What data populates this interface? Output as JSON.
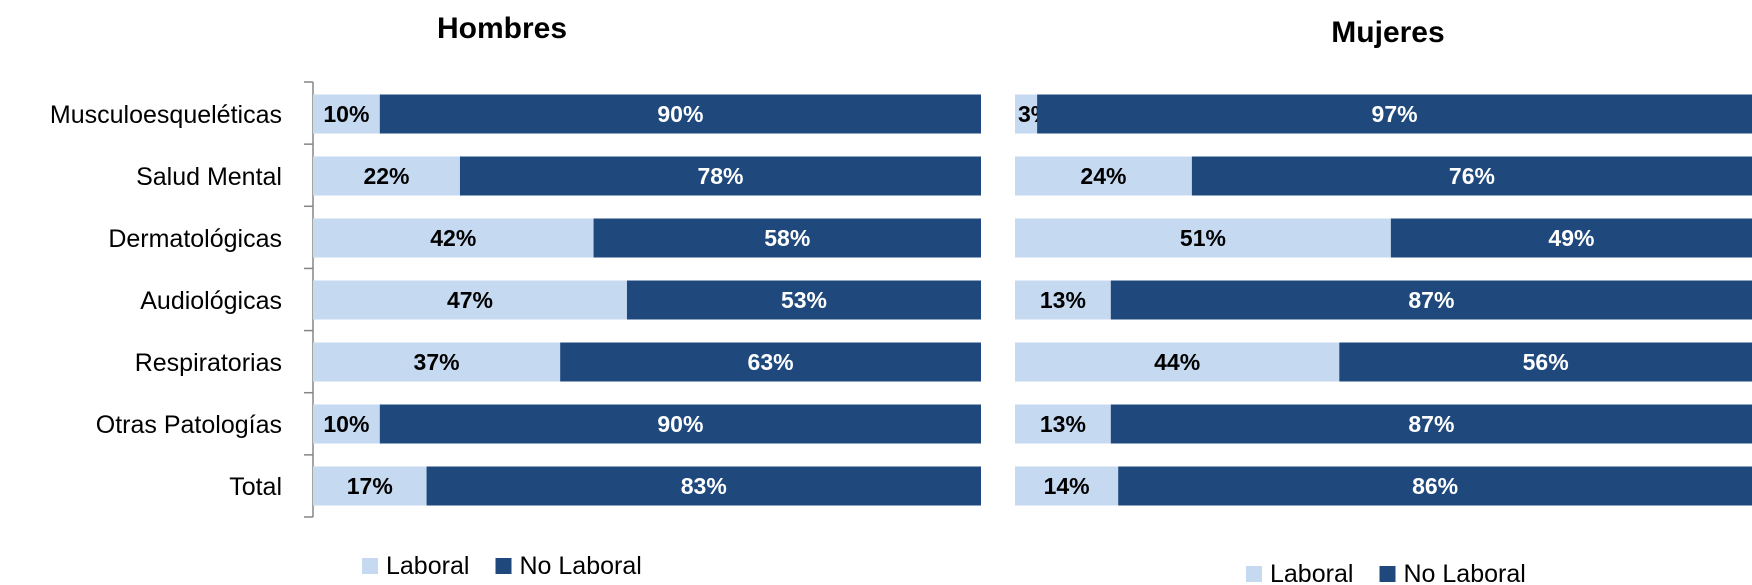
{
  "chart_data": [
    {
      "type": "bar",
      "orientation": "horizontal",
      "stacked": "percent",
      "title": "Hombres",
      "categories": [
        "Musculoesqueléticas",
        "Salud Mental",
        "Dermatológicas",
        "Audiológicas",
        "Respiratorias",
        "Otras Patologías",
        "Total"
      ],
      "series": [
        {
          "name": "Laboral",
          "values": [
            10,
            22,
            42,
            47,
            37,
            10,
            17
          ],
          "labels": [
            "10%",
            "22%",
            "42%",
            "47%",
            "37%",
            "10%",
            "17%"
          ],
          "color": "#c5d9f1"
        },
        {
          "name": "No Laboral",
          "values": [
            90,
            78,
            58,
            53,
            63,
            90,
            83
          ],
          "labels": [
            "90%",
            "78%",
            "58%",
            "53%",
            "63%",
            "90%",
            "83%"
          ],
          "color": "#1f497d"
        }
      ],
      "xlim": [
        0,
        100
      ],
      "legend": "bottom",
      "grid": false
    },
    {
      "type": "bar",
      "orientation": "horizontal",
      "stacked": "percent",
      "title": "Mujeres",
      "categories": [
        "Musculoesqueléticas",
        "Salud Mental",
        "Dermatológicas",
        "Audiológicas",
        "Respiratorias",
        "Otras Patologías",
        "Total"
      ],
      "series": [
        {
          "name": "Laboral",
          "values": [
            3,
            24,
            51,
            13,
            44,
            13,
            14
          ],
          "labels": [
            "3%",
            "24%",
            "51%",
            "13%",
            "44%",
            "13%",
            "14%"
          ],
          "color": "#c5d9f1"
        },
        {
          "name": "No Laboral",
          "values": [
            97,
            76,
            49,
            87,
            56,
            87,
            86
          ],
          "labels": [
            "97%",
            "76%",
            "49%",
            "87%",
            "56%",
            "87%",
            "86%"
          ],
          "color": "#1f497d"
        }
      ],
      "xlim": [
        0,
        100
      ],
      "legend": "bottom",
      "grid": false
    }
  ]
}
